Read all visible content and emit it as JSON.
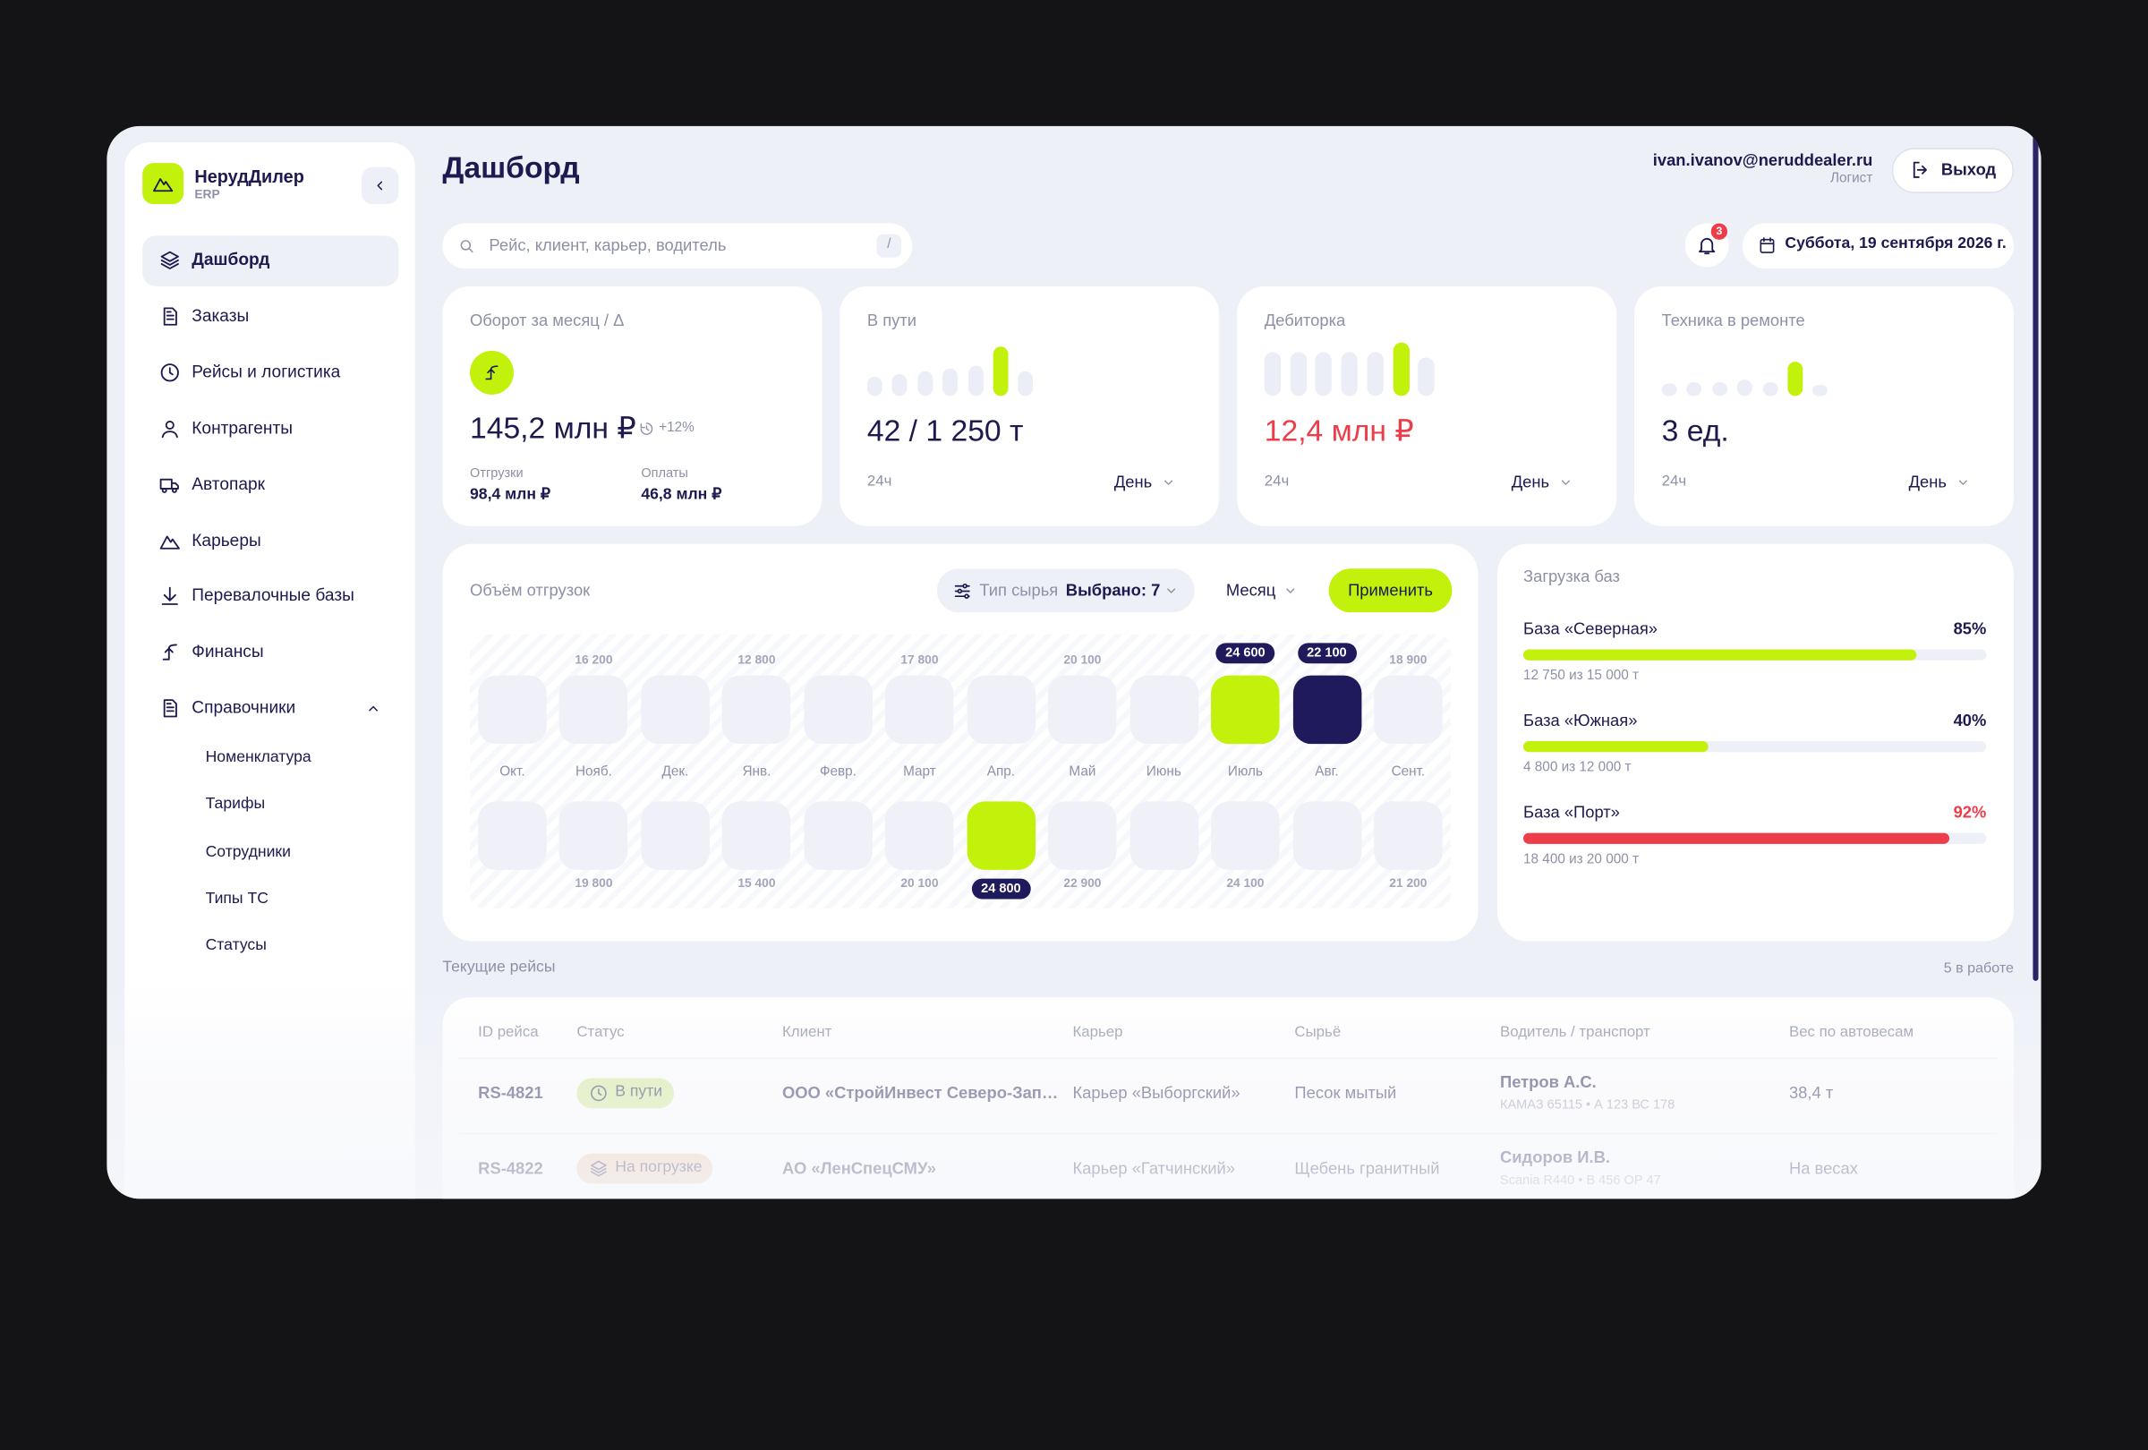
{
  "sidebar": {
    "brand": "НерудДилер",
    "brand_sub": "ERP",
    "nav": [
      {
        "label": "Дашборд",
        "active": true
      },
      {
        "label": "Заказы"
      },
      {
        "label": "Рейсы и логистика"
      },
      {
        "label": "Контрагенты"
      },
      {
        "label": "Автопарк"
      },
      {
        "label": "Карьеры"
      },
      {
        "label": "Перевалочные базы"
      },
      {
        "label": "Финансы"
      },
      {
        "label": "Справочники"
      }
    ],
    "subnav": [
      "Номенклатура",
      "Тарифы",
      "Сотрудники",
      "Типы ТС",
      "Статусы"
    ]
  },
  "header": {
    "title": "Дашборд",
    "email": "ivan.ivanov@neruddealer.ru",
    "role": "Логист",
    "logout": "Выход",
    "search_placeholder": "Рейс, клиент, карьер, водитель",
    "search_hint": "/",
    "notifications": "3",
    "date": "Суббота, 19 сентября 2026 г."
  },
  "kpis": [
    {
      "label": "Оборот за месяц / Δ",
      "value": "145,2 млн ₽",
      "delta": "+12%",
      "sub": [
        {
          "label": "Отгрузки",
          "value": "98,4 млн ₽"
        },
        {
          "label": "Оплаты",
          "value": "46,8 млн ₽"
        }
      ]
    },
    {
      "label": "В пути",
      "value": "42 / 1 250 т",
      "period": "24ч",
      "select": "День"
    },
    {
      "label": "Дебиторка",
      "value": "12,4 млн ₽",
      "period": "24ч",
      "select": "День",
      "alert": true
    },
    {
      "label": "Техника в ремонте",
      "value": "3 ед.",
      "period": "24ч",
      "select": "День"
    }
  ],
  "shipments": {
    "title": "Объём отгрузок",
    "filter_label": "Тип сырья",
    "filter_value": "Выбрано: 7",
    "period": "Месяц",
    "apply": "Применить",
    "months": [
      "Окт.",
      "Нояб.",
      "Дек.",
      "Янв.",
      "Февр.",
      "Март",
      "Апр.",
      "Май",
      "Июнь",
      "Июль",
      "Авг.",
      "Сент."
    ],
    "top": {
      "values": [
        null,
        "16 200",
        null,
        "12 800",
        null,
        "17 800",
        null,
        "20 100",
        null,
        "24 600",
        "22 100",
        "18 900"
      ],
      "colors": [
        null,
        null,
        null,
        null,
        null,
        null,
        null,
        null,
        null,
        "#c2f20c",
        "#1f1a5c",
        null
      ]
    },
    "bottom": {
      "values": [
        null,
        "19 800",
        null,
        "15 400",
        null,
        "20 100",
        "24 800",
        "22 900",
        null,
        "24 100",
        null,
        "21 200"
      ],
      "colors": [
        null,
        null,
        null,
        null,
        null,
        null,
        "#c2f20c",
        null,
        null,
        null,
        null,
        null
      ]
    }
  },
  "bases": {
    "title": "Загрузка баз",
    "items": [
      {
        "name": "База «Северная»",
        "percent": {
          "value": 85,
          "label": "85%"
        },
        "detail": "12 750 из 15 000 т",
        "color": "#c2f20c"
      },
      {
        "name": "База «Южная»",
        "percent": {
          "value": 40,
          "label": "40%"
        },
        "detail": "4 800 из 12 000 т",
        "color": "#c2f20c"
      },
      {
        "name": "База «Порт»",
        "percent": {
          "value": 92,
          "label": "92%"
        },
        "detail": "18 400 из 20 000 т",
        "color": "#ee3d4a",
        "alert": true
      }
    ]
  },
  "trips": {
    "title": "Текущие рейсы",
    "count": "5 в работе",
    "columns": [
      "ID рейса",
      "Статус",
      "Клиент",
      "Карьер",
      "Сырьё",
      "Водитель / транспорт",
      "Вес по автовесам"
    ],
    "rows": [
      {
        "id": "RS-4821",
        "status": {
          "label": "В пути",
          "color": "#cfe98f"
        },
        "client": "ООО «СтройИнвест Северо-Зап…",
        "quarry": "Карьер «Выборгский»",
        "material": "Песок мытый",
        "driver": "Петров А.С.",
        "vehicle": "КАМАЗ 65115 • А 123 ВС 178",
        "weight": "38,4 т"
      },
      {
        "id": "RS-4822",
        "status": {
          "label": "На погрузке",
          "color": "#ebc9ab"
        },
        "client": "АО «ЛенСпецСМУ»",
        "quarry": "Карьер «Гатчинский»",
        "material": "Щебень гранитный",
        "driver": "Сидоров И.В.",
        "vehicle": "Scania R440 • В 456 ОР 47",
        "weight": "На весах"
      }
    ]
  }
}
